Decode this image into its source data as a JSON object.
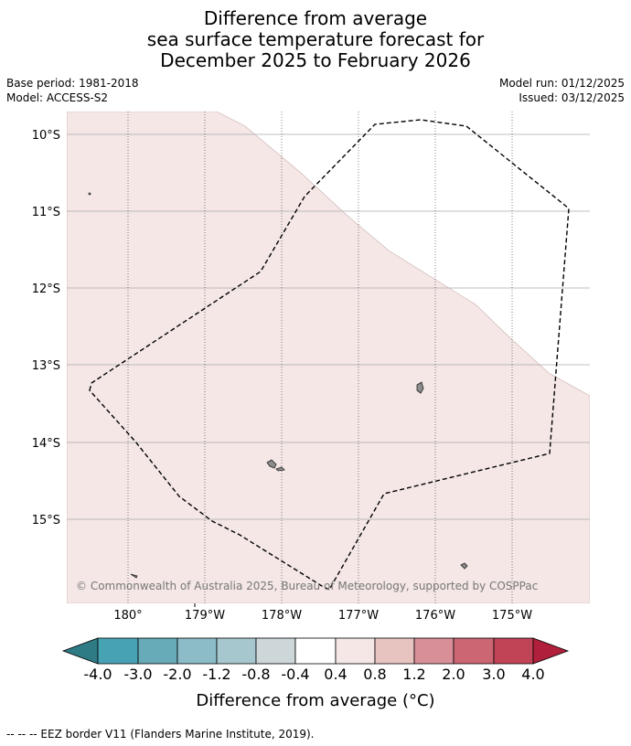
{
  "title": {
    "line1": "Difference from average",
    "line2": "sea surface temperature forecast for",
    "line3": "December 2025 to February 2026"
  },
  "meta": {
    "base_period": "Base period: 1981-2018",
    "model": "Model: ACCESS-S2",
    "model_run": "Model run: 01/12/2025",
    "issued": "Issued: 03/12/2025"
  },
  "map": {
    "lat_labels": [
      "10°S",
      "11°S",
      "12°S",
      "13°S",
      "14°S",
      "15°S"
    ],
    "lon_labels": [
      "180°",
      "179°W",
      "178°W",
      "177°W",
      "176°W",
      "175°W"
    ],
    "fill_color": "#f4e7e6",
    "copyright": "© Commonwealth of Australia 2025, Bureau of Meteorology, supported by COSPPac"
  },
  "colorbar": {
    "tick_labels": [
      "-4.0",
      "-3.0",
      "-2.0",
      "-1.2",
      "-0.8",
      "-0.4",
      "0.4",
      "0.8",
      "1.2",
      "2.0",
      "3.0",
      "4.0"
    ],
    "colors": [
      "#2e7b86",
      "#47a3b4",
      "#67aab8",
      "#8bbcc7",
      "#a7c7ce",
      "#cdd6d8",
      "#ffffff",
      "#f4e7e6",
      "#e8c4c1",
      "#d88f97",
      "#cc6673",
      "#c04456",
      "#b01f3b"
    ],
    "label": "Difference from average (°C)"
  },
  "footer": "--  --  -- EEZ border V11 (Flanders Marine Institute, 2019)."
}
